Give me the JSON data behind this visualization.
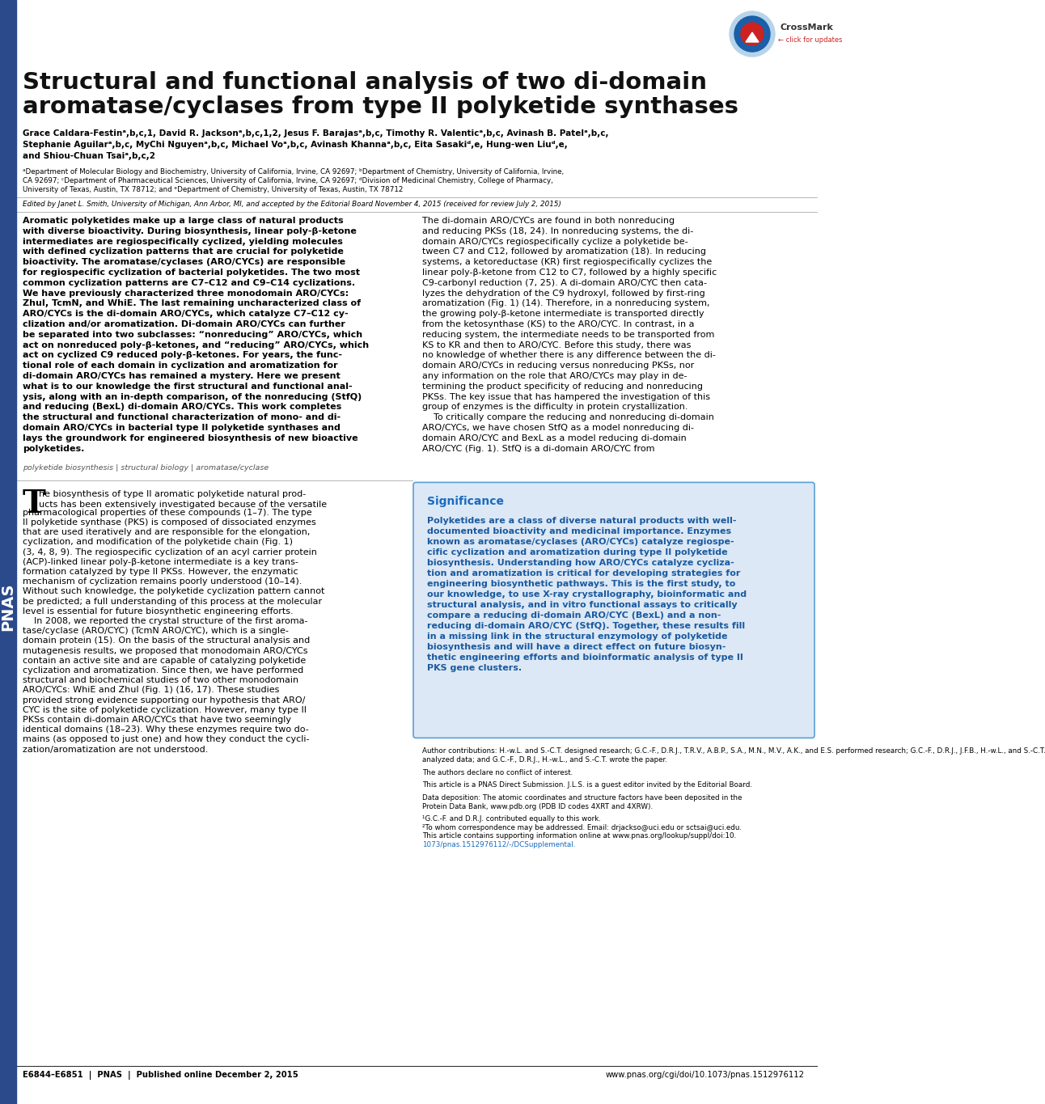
{
  "bg_color": "#ffffff",
  "left_bar_color": "#2a4a8b",
  "title_line1": "Structural and functional analysis of two di-domain",
  "title_line2": "aromatase/cyclases from type II polyketide synthases",
  "author_line1": "Grace Caldara-Festinᵃ,b,c,1, David R. Jacksonᵃ,b,c,1,2, Jesus F. Barajasᵃ,b,c, Timothy R. Valenticᵃ,b,c, Avinash B. Patelᵃ,b,c,",
  "author_line2": "Stephanie Aguilarᵃ,b,c, MyChi Nguyenᵃ,b,c, Michael Voᵃ,b,c, Avinash Khannaᵃ,b,c, Eita Sasakiᵈ,e, Hung-wen Liuᵈ,e,",
  "author_line3": "and Shiou-Chuan Tsaiᵃ,b,c,2",
  "affil1": "ᵃDepartment of Molecular Biology and Biochemistry, University of California, Irvine, CA 92697; ᵇDepartment of Chemistry, University of California, Irvine,",
  "affil2": "CA 92697; ᶜDepartment of Pharmaceutical Sciences, University of California, Irvine, CA 92697; ᵈDivision of Medicinal Chemistry, College of Pharmacy,",
  "affil3": "University of Texas, Austin, TX 78712; and ᵉDepartment of Chemistry, University of Texas, Austin, TX 78712",
  "edited_by": "Edited by Janet L. Smith, University of Michigan, Ann Arbor, MI, and accepted by the Editorial Board November 4, 2015 (received for review July 2, 2015)",
  "abstract_left_lines": [
    "Aromatic polyketides make up a large class of natural products",
    "with diverse bioactivity. During biosynthesis, linear poly-β-ketone",
    "intermediates are regiospecifically cyclized, yielding molecules",
    "with defined cyclization patterns that are crucial for polyketide",
    "bioactivity. The aromatase/cyclases (ARO/CYCs) are responsible",
    "for regiospecific cyclization of bacterial polyketides. The two most",
    "common cyclization patterns are C7–C12 and C9–C14 cyclizations.",
    "We have previously characterized three monodomain ARO/CYCs:",
    "ZhuI, TcmN, and WhiE. The last remaining uncharacterized class of",
    "ARO/CYCs is the di-domain ARO/CYCs, which catalyze C7–C12 cy-",
    "clization and/or aromatization. Di-domain ARO/CYCs can further",
    "be separated into two subclasses: “nonreducing” ARO/CYCs, which",
    "act on nonreduced poly-β-ketones, and “reducing” ARO/CYCs, which",
    "act on cyclized C9 reduced poly-β-ketones. For years, the func-",
    "tional role of each domain in cyclization and aromatization for",
    "di-domain ARO/CYCs has remained a mystery. Here we present",
    "what is to our knowledge the first structural and functional anal-",
    "ysis, along with an in-depth comparison, of the nonreducing (StfQ)",
    "and reducing (BexL) di-domain ARO/CYCs. This work completes",
    "the structural and functional characterization of mono- and di-",
    "domain ARO/CYCs in bacterial type II polyketide synthases and",
    "lays the groundwork for engineered biosynthesis of new bioactive",
    "polyketides."
  ],
  "abstract_right_lines": [
    "The di-domain ARO/CYCs are found in both nonreducing",
    "and reducing PKSs (18, 24). In nonreducing systems, the di-",
    "domain ARO/CYCs regiospecifically cyclize a polyketide be-",
    "tween C7 and C12, followed by aromatization (18). In reducing",
    "systems, a ketoreductase (KR) first regiospecifically cyclizes the",
    "linear poly-β-ketone from C12 to C7, followed by a highly specific",
    "C9-carbonyl reduction (7, 25). A di-domain ARO/CYC then cata-",
    "lyzes the dehydration of the C9 hydroxyl, followed by first-ring",
    "aromatization (Fig. 1) (14). Therefore, in a nonreducing system,",
    "the growing poly-β-ketone intermediate is transported directly",
    "from the ketosynthase (KS) to the ARO/CYC. In contrast, in a",
    "reducing system, the intermediate needs to be transported from",
    "KS to KR and then to ARO/CYC. Before this study, there was",
    "no knowledge of whether there is any difference between the di-",
    "domain ARO/CYCs in reducing versus nonreducing PKSs, nor",
    "any information on the role that ARO/CYCs may play in de-",
    "termining the product specificity of reducing and nonreducing",
    "PKSs. The key issue that has hampered the investigation of this",
    "group of enzymes is the difficulty in protein crystallization.",
    "    To critically compare the reducing and nonreducing di-domain",
    "ARO/CYCs, we have chosen StfQ as a model nonreducing di-",
    "domain ARO/CYC and BexL as a model reducing di-domain",
    "ARO/CYC (Fig. 1). StfQ is a di-domain ARO/CYC from"
  ],
  "keywords": "polyketide biosynthesis | structural biology | aromatase/cyclase",
  "body_left_line1a": "he biosynthesis of type II aromatic polyketide natural prod-",
  "body_left_line1b": "ucts has been extensively investigated because of the versatile",
  "body_left_lines": [
    "ucts has been extensively investigated because of the versatile",
    "pharmacological properties of these compounds (1–7). The type",
    "II polyketide synthase (PKS) is composed of dissociated enzymes",
    "that are used iteratively and are responsible for the elongation,",
    "cyclization, and modification of the polyketide chain (Fig. 1)",
    "(3, 4, 8, 9). The regiospecific cyclization of an acyl carrier protein",
    "(ACP)-linked linear poly-β-ketone intermediate is a key trans-",
    "formation catalyzed by type II PKSs. However, the enzymatic",
    "mechanism of cyclization remains poorly understood (10–14).",
    "Without such knowledge, the polyketide cyclization pattern cannot",
    "be predicted; a full understanding of this process at the molecular",
    "level is essential for future biosynthetic engineering efforts.",
    "    In 2008, we reported the crystal structure of the first aroma-",
    "tase/cyclase (ARO/CYC) (TcmN ARO/CYC), which is a single-",
    "domain protein (15). On the basis of the structural analysis and",
    "mutagenesis results, we proposed that monodomain ARO/CYCs",
    "contain an active site and are capable of catalyzing polyketide",
    "cyclization and aromatization. Since then, we have performed",
    "structural and biochemical studies of two other monodomain",
    "ARO/CYCs: WhiE and ZhuI (Fig. 1) (16, 17). These studies",
    "provided strong evidence supporting our hypothesis that ARO/",
    "CYC is the site of polyketide cyclization. However, many type II",
    "PKSs contain di-domain ARO/CYCs that have two seemingly",
    "identical domains (18–23). Why these enzymes require two do-",
    "mains (as opposed to just one) and how they conduct the cycli-",
    "zation/aromatization are not understood."
  ],
  "significance_title": "Significance",
  "significance_lines": [
    "Polyketides are a class of diverse natural products with well-",
    "documented bioactivity and medicinal importance. Enzymes",
    "known as aromatase/cyclases (ARO/CYCs) catalyze regiospe-",
    "cific cyclization and aromatization during type II polyketide",
    "biosynthesis. Understanding how ARO/CYCs catalyze cycliza-",
    "tion and aromatization is critical for developing strategies for",
    "engineering biosynthetic pathways. This is the first study, to",
    "our knowledge, to use X-ray crystallography, bioinformatic and",
    "structural analysis, and in vitro functional assays to critically",
    "compare a reducing di-domain ARO/CYC (BexL) and a non-",
    "reducing di-domain ARO/CYC (StfQ). Together, these results fill",
    "in a missing link in the structural enzymology of polyketide",
    "biosynthesis and will have a direct effect on future biosyn-",
    "thetic engineering efforts and bioinformatic analysis of type II",
    "PKS gene clusters."
  ],
  "author_contrib": "Author contributions: H.-w.L. and S.-C.T. designed research; G.C.-F., D.R.J., T.R.V., A.B.P., S.A., M.N., M.V., A.K., and E.S. performed research; G.C.-F., D.R.J., J.F.B., H.-w.L., and S.-C.T.",
  "author_contrib2": "analyzed data; and G.C.-F., D.R.J., H.-w.L., and S.-C.T. wrote the paper.",
  "no_conflict": "The authors declare no conflict of interest.",
  "pnas_direct": "This article is a PNAS Direct Submission. J.L.S. is a guest editor invited by the Editorial Board.",
  "data_deposit1": "Data deposition: The atomic coordinates and structure factors have been deposited in the",
  "data_deposit2": "Protein Data Bank, www.pdb.org (PDB ID codes 4XRT and 4XRW).",
  "footnote1": "¹G.C.-F. and D.R.J. contributed equally to this work.",
  "footnote2": "²To whom correspondence may be addressed. Email: drjackso@uci.edu or sctsai@uci.edu.",
  "footnote3a": "This article contains supporting information online at www.pnas.org/lookup/suppl/doi:10.",
  "footnote3b": "1073/pnas.1512976112/-/DCSupplemental.",
  "footer_left": "E6844–E6851  |  PNAS  |  Published online December 2, 2015",
  "footer_right": "www.pnas.org/cgi/doi/10.1073/pnas.1512976112",
  "significance_bg": "#dce8f5",
  "significance_border": "#5a9fd4",
  "significance_title_color": "#1a6bbf",
  "significance_text_color": "#1a5a9f",
  "link_color": "#1a6bbf"
}
